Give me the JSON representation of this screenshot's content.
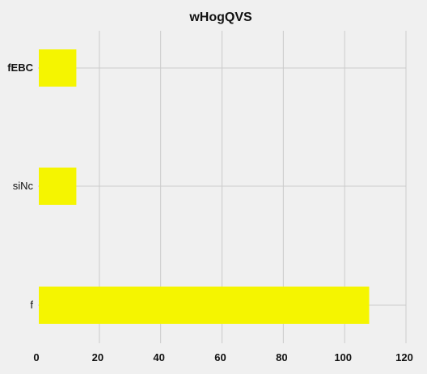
{
  "chart_data": {
    "type": "bar",
    "orientation": "horizontal",
    "title": "wHogQVS",
    "categories": [
      "fEBC",
      "siNc",
      "f"
    ],
    "values": [
      12.5,
      12.5,
      108
    ],
    "xlim": [
      0,
      120
    ],
    "xticks": [
      0,
      20,
      40,
      60,
      80,
      100,
      120
    ],
    "xlabel": "",
    "ylabel": "",
    "grid": true,
    "bar_color": "#f5f500",
    "background_color": "#f0f0f0"
  }
}
